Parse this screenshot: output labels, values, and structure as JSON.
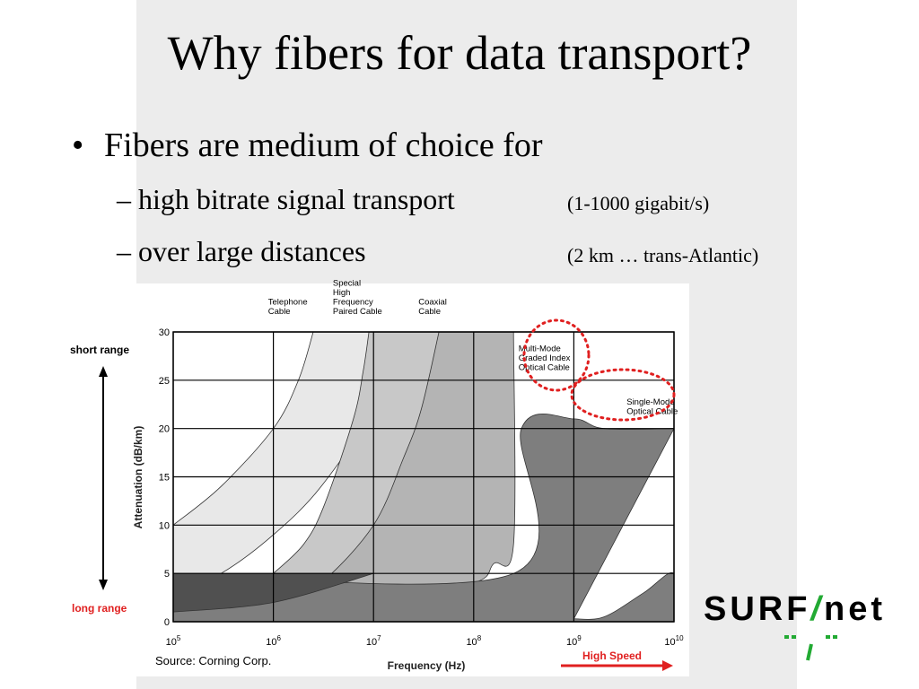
{
  "slide": {
    "title": "Why fibers for data transport?",
    "bullet": "Fibers are medium of choice for",
    "subbullets": [
      {
        "text": "– high bitrate signal transport",
        "note": "(1-1000 gigabit/s)"
      },
      {
        "text": "– over large distances",
        "note": "(2 km … trans-Atlantic)"
      }
    ]
  },
  "side_labels": {
    "top": "short range",
    "bottom": "long range",
    "top_color": "#000000",
    "bottom_color": "#e02020"
  },
  "logo": {
    "text_left": "SURF",
    "slash": "/",
    "text_right": "net",
    "accent": "#22aa33"
  },
  "chart_data": {
    "type": "area",
    "xlabel": "Frequency (Hz)",
    "ylabel": "Attenuation (dB/km)",
    "xscale": "log",
    "xlim": [
      100000,
      10000000000
    ],
    "ylim": [
      0,
      30
    ],
    "x_ticks": [
      {
        "base": "10",
        "exp": "5",
        "value": 100000
      },
      {
        "base": "10",
        "exp": "6",
        "value": 1000000
      },
      {
        "base": "10",
        "exp": "7",
        "value": 10000000
      },
      {
        "base": "10",
        "exp": "8",
        "value": 100000000
      },
      {
        "base": "10",
        "exp": "9",
        "value": 1000000000
      },
      {
        "base": "10",
        "exp": "10",
        "value": 10000000000
      }
    ],
    "y_ticks": [
      "0",
      "5",
      "10",
      "15",
      "20",
      "25",
      "30"
    ],
    "grid": true,
    "series": [
      {
        "name": "Telephone Cable",
        "color": "#e8e8e8",
        "upper": [
          [
            100000,
            10
          ],
          [
            300000,
            14
          ],
          [
            1000000,
            20
          ],
          [
            1780000,
            25
          ],
          [
            2500000,
            30
          ]
        ],
        "lower": [
          [
            100000,
            3
          ],
          [
            300000,
            5
          ],
          [
            1000000,
            9
          ],
          [
            3000000,
            14
          ],
          [
            8000000,
            21
          ],
          [
            12600000,
            30
          ]
        ]
      },
      {
        "name": "Special High Frequency Paired Cable",
        "color": "#c8c8c8",
        "upper": [
          [
            1000000,
            5
          ],
          [
            2000000,
            8
          ],
          [
            3200000,
            12
          ],
          [
            6300000,
            21
          ],
          [
            7900000,
            26
          ],
          [
            9000000,
            30
          ]
        ],
        "lower": [
          [
            1000000,
            1
          ],
          [
            2000000,
            2
          ],
          [
            5000000,
            5
          ],
          [
            10000000,
            8
          ],
          [
            20000000,
            14
          ],
          [
            40000000,
            22
          ],
          [
            63000000,
            30
          ]
        ]
      },
      {
        "name": "Coaxial Cable",
        "color": "#b4b4b4",
        "upper": [
          [
            1000000,
            1
          ],
          [
            3000000,
            4
          ],
          [
            10000000,
            10
          ],
          [
            20000000,
            17
          ],
          [
            30000000,
            22
          ],
          [
            45000000,
            30
          ]
        ],
        "lower": [
          [
            1000000,
            0.5
          ],
          [
            10000000,
            2
          ],
          [
            100000000,
            4
          ],
          [
            158000000,
            6
          ],
          [
            250000000,
            8
          ],
          [
            250000000,
            30
          ]
        ]
      },
      {
        "name": "Multi-Mode Graded Index Optical Cable",
        "color": "#7e7e7e",
        "upper": [
          [
            100000,
            5
          ],
          [
            250000000,
            5
          ],
          [
            300000000,
            20
          ],
          [
            1000000000,
            21
          ],
          [
            2000000000,
            20
          ],
          [
            10000000000,
            20
          ]
        ],
        "lower": [
          [
            100000,
            0
          ],
          [
            10000000000,
            0
          ],
          [
            10000000000,
            5
          ],
          [
            5000000000,
            3
          ],
          [
            2000000000,
            0.5
          ],
          [
            1000000000,
            0.3
          ]
        ]
      },
      {
        "name": "Single-Mode Optical Cable",
        "color": "#505050",
        "upper": [
          [
            100000,
            5
          ],
          [
            2000000,
            5
          ],
          [
            10000000,
            5
          ]
        ],
        "lower": [
          [
            100000,
            1
          ],
          [
            1000000,
            2
          ],
          [
            10000000,
            5
          ]
        ]
      }
    ],
    "annotations": [
      {
        "text": "Telephone Cable",
        "x": 1580000,
        "y": 31.5
      },
      {
        "text": "Special High Frequency Paired Cable",
        "x": 7000000,
        "y": 31.5
      },
      {
        "text": "Coaxial Cable",
        "x": 50000000,
        "y": 31.5
      },
      {
        "text": "Multi-Mode Graded Index Optical Cable",
        "x": 500000000,
        "y": 28
      },
      {
        "text": "Single-Mode Optical Cable",
        "x": 6000000000,
        "y": 22.5
      }
    ],
    "source": "Source: Corning Corp.",
    "speed_label": "High Speed",
    "speed_color": "#e02020",
    "highlight_color": "#e02020"
  }
}
